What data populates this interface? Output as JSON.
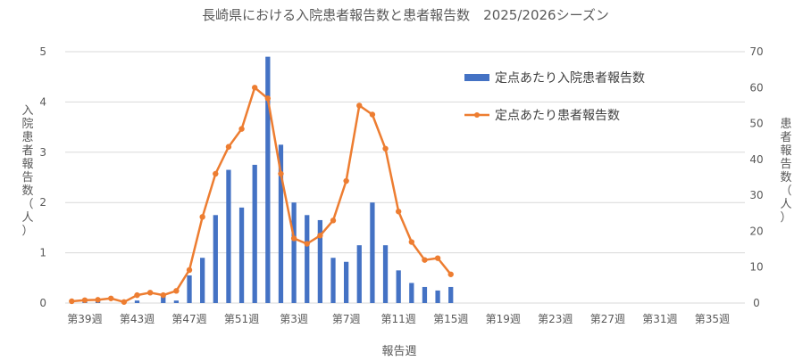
{
  "chart_data": {
    "type": "bar+line",
    "title": "長崎県における入院患者報告数と患者報告数　2025/2026シーズン",
    "xlabel": "報告週",
    "ylabel_left": "入院患者報告数（人）",
    "ylabel_right": "患者報告数（人）",
    "ylim_left": [
      0,
      5
    ],
    "ylim_right": [
      0,
      70
    ],
    "yticks_left": [
      "0",
      "1",
      "2",
      "3",
      "4",
      "5"
    ],
    "yticks_right": [
      "0",
      "10",
      "20",
      "30",
      "40",
      "50",
      "60",
      "70"
    ],
    "x_tick_labels": [
      "第39週",
      "第43週",
      "第47週",
      "第51週",
      "第3週",
      "第7週",
      "第11週",
      "第15週",
      "第19週",
      "第23週",
      "第27週",
      "第31週",
      "第35週"
    ],
    "legend_position": "top-right",
    "grid": true,
    "colors": {
      "bar": "#4472C4",
      "line": "#ED7D31",
      "grid": "#D9D9D9",
      "text": "#595959"
    },
    "series": [
      {
        "name": "定点あたり入院患者報告数",
        "kind": "bar",
        "axis": "left",
        "values": [
          0.0,
          0.05,
          0.05,
          0.0,
          0.0,
          0.05,
          0.0,
          0.15,
          0.05,
          0.55,
          0.9,
          1.75,
          2.65,
          1.9,
          2.75,
          4.9,
          3.15,
          2.0,
          1.75,
          1.65,
          0.9,
          0.82,
          1.15,
          2.0,
          1.15,
          0.65,
          0.4,
          0.32,
          0.25,
          0.32
        ]
      },
      {
        "name": "定点あたり患者報告数",
        "kind": "line",
        "axis": "right",
        "values": [
          0.5,
          0.8,
          0.9,
          1.3,
          0.3,
          2.2,
          2.9,
          2.2,
          3.4,
          9.2,
          24,
          36,
          43.5,
          48.5,
          60,
          57,
          36,
          18,
          16.5,
          18.8,
          23,
          34,
          55,
          52.5,
          43,
          25.5,
          17,
          12,
          12.5,
          8
        ]
      }
    ]
  }
}
